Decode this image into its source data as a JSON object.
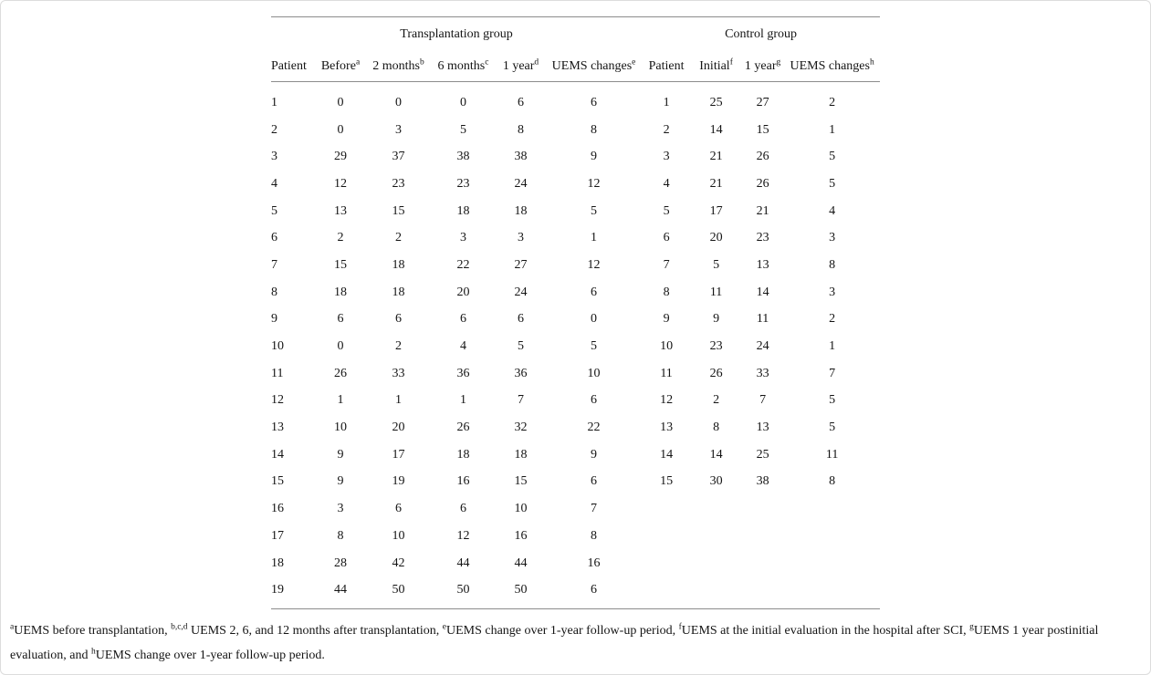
{
  "colors": {
    "background": "#ffffff",
    "text": "#141414",
    "rule": "#8c8c8c",
    "outer_border": "#dcdcdc"
  },
  "table": {
    "group_headers": [
      {
        "label": "Transplantation group",
        "colspan": 6
      },
      {
        "label": "Control group",
        "colspan": 4
      }
    ],
    "columns": [
      {
        "label": "Patient",
        "sup": ""
      },
      {
        "label": "Before",
        "sup": "a"
      },
      {
        "label": "2 months",
        "sup": "b"
      },
      {
        "label": "6 months",
        "sup": "c"
      },
      {
        "label": "1 year",
        "sup": "d"
      },
      {
        "label": "UEMS changes",
        "sup": "e"
      },
      {
        "label": "Patient",
        "sup": ""
      },
      {
        "label": "Initial",
        "sup": "f"
      },
      {
        "label": "1 year",
        "sup": "g"
      },
      {
        "label": "UEMS changes",
        "sup": "h"
      }
    ],
    "rows": [
      [
        "1",
        "0",
        "0",
        "0",
        "6",
        "6",
        "1",
        "25",
        "27",
        "2"
      ],
      [
        "2",
        "0",
        "3",
        "5",
        "8",
        "8",
        "2",
        "14",
        "15",
        "1"
      ],
      [
        "3",
        "29",
        "37",
        "38",
        "38",
        "9",
        "3",
        "21",
        "26",
        "5"
      ],
      [
        "4",
        "12",
        "23",
        "23",
        "24",
        "12",
        "4",
        "21",
        "26",
        "5"
      ],
      [
        "5",
        "13",
        "15",
        "18",
        "18",
        "5",
        "5",
        "17",
        "21",
        "4"
      ],
      [
        "6",
        "2",
        "2",
        "3",
        "3",
        "1",
        "6",
        "20",
        "23",
        "3"
      ],
      [
        "7",
        "15",
        "18",
        "22",
        "27",
        "12",
        "7",
        "5",
        "13",
        "8"
      ],
      [
        "8",
        "18",
        "18",
        "20",
        "24",
        "6",
        "8",
        "11",
        "14",
        "3"
      ],
      [
        "9",
        "6",
        "6",
        "6",
        "6",
        "0",
        "9",
        "9",
        "11",
        "2"
      ],
      [
        "10",
        "0",
        "2",
        "4",
        "5",
        "5",
        "10",
        "23",
        "24",
        "1"
      ],
      [
        "11",
        "26",
        "33",
        "36",
        "36",
        "10",
        "11",
        "26",
        "33",
        "7"
      ],
      [
        "12",
        "1",
        "1",
        "1",
        "7",
        "6",
        "12",
        "2",
        "7",
        "5"
      ],
      [
        "13",
        "10",
        "20",
        "26",
        "32",
        "22",
        "13",
        "8",
        "13",
        "5"
      ],
      [
        "14",
        "9",
        "17",
        "18",
        "18",
        "9",
        "14",
        "14",
        "25",
        "11"
      ],
      [
        "15",
        "9",
        "19",
        "16",
        "15",
        "6",
        "15",
        "30",
        "38",
        "8"
      ],
      [
        "16",
        "3",
        "6",
        "6",
        "10",
        "7",
        "",
        "",
        "",
        ""
      ],
      [
        "17",
        "8",
        "10",
        "12",
        "16",
        "8",
        "",
        "",
        "",
        ""
      ],
      [
        "18",
        "28",
        "42",
        "44",
        "44",
        "16",
        "",
        "",
        "",
        ""
      ],
      [
        "19",
        "44",
        "50",
        "50",
        "50",
        "6",
        "",
        "",
        "",
        ""
      ]
    ]
  },
  "footnote": {
    "segments": [
      {
        "sup": "a",
        "text": "UEMS before transplantation, "
      },
      {
        "sup": "b,c,d",
        "text": " UEMS 2, 6, and 12 months after transplantation, "
      },
      {
        "sup": "e",
        "text": "UEMS change over 1-year follow-up period, "
      },
      {
        "sup": "f",
        "text": "UEMS at the initial evaluation in the hospital after SCI, "
      },
      {
        "sup": "g",
        "text": "UEMS 1 year postinitial evaluation, and "
      },
      {
        "sup": "h",
        "text": "UEMS change over 1-year follow-up period."
      }
    ]
  }
}
